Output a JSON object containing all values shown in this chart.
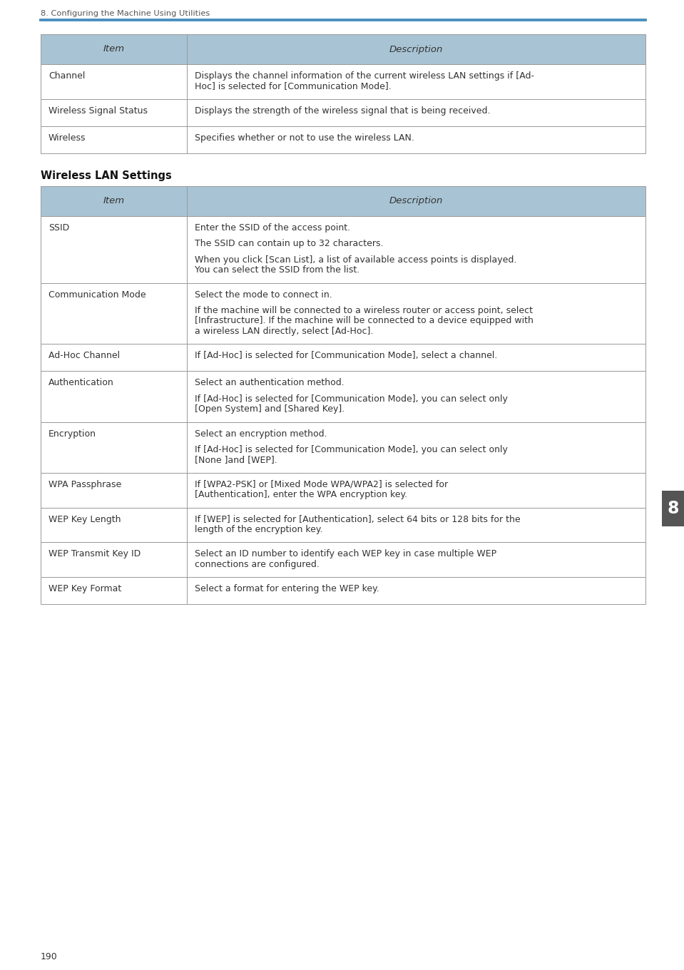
{
  "page_header": "8. Configuring the Machine Using Utilities",
  "page_footer": "190",
  "header_line_color": "#4a8fc0",
  "header_bg_color": "#a8c4d4",
  "table_border_color": "#999999",
  "bg_color": "#ffffff",
  "body_font_size": 9.0,
  "header_font_size": 9.5,
  "section_label_bg": "#555555",
  "section_label_text": "#ffffff",
  "section_label": "8",
  "table1": {
    "header": [
      "Item",
      "Description"
    ],
    "rows": [
      [
        "Channel",
        "Displays the channel information of the current wireless LAN settings if [Ad-\nHoc] is selected for [Communication Mode]."
      ],
      [
        "Wireless Signal Status",
        "Displays the strength of the wireless signal that is being received."
      ],
      [
        "Wireless",
        "Specifies whether or not to use the wireless LAN."
      ]
    ]
  },
  "section_title2": "Wireless LAN Settings",
  "table2": {
    "header": [
      "Item",
      "Description"
    ],
    "rows": [
      [
        "SSID",
        "Enter the SSID of the access point.\n\nThe SSID can contain up to 32 characters.\n\nWhen you click [Scan List], a list of available access points is displayed.\nYou can select the SSID from the list."
      ],
      [
        "Communication Mode",
        "Select the mode to connect in.\n\nIf the machine will be connected to a wireless router or access point, select\n[Infrastructure]. If the machine will be connected to a device equipped with\na wireless LAN directly, select [Ad-Hoc]."
      ],
      [
        "Ad-Hoc Channel",
        "If [Ad-Hoc] is selected for [Communication Mode], select a channel."
      ],
      [
        "Authentication",
        "Select an authentication method.\n\nIf [Ad-Hoc] is selected for [Communication Mode], you can select only\n[Open System] and [Shared Key]."
      ],
      [
        "Encryption",
        "Select an encryption method.\n\nIf [Ad-Hoc] is selected for [Communication Mode], you can select only\n[None ]and [WEP]."
      ],
      [
        "WPA Passphrase",
        "If [WPA2-PSK] or [Mixed Mode WPA/WPA2] is selected for\n[Authentication], enter the WPA encryption key."
      ],
      [
        "WEP Key Length",
        "If [WEP] is selected for [Authentication], select 64 bits or 128 bits for the\nlength of the encryption key."
      ],
      [
        "WEP Transmit Key ID",
        "Select an ID number to identify each WEP key in case multiple WEP\nconnections are configured."
      ],
      [
        "WEP Key Format",
        "Select a format for entering the WEP key."
      ]
    ]
  }
}
